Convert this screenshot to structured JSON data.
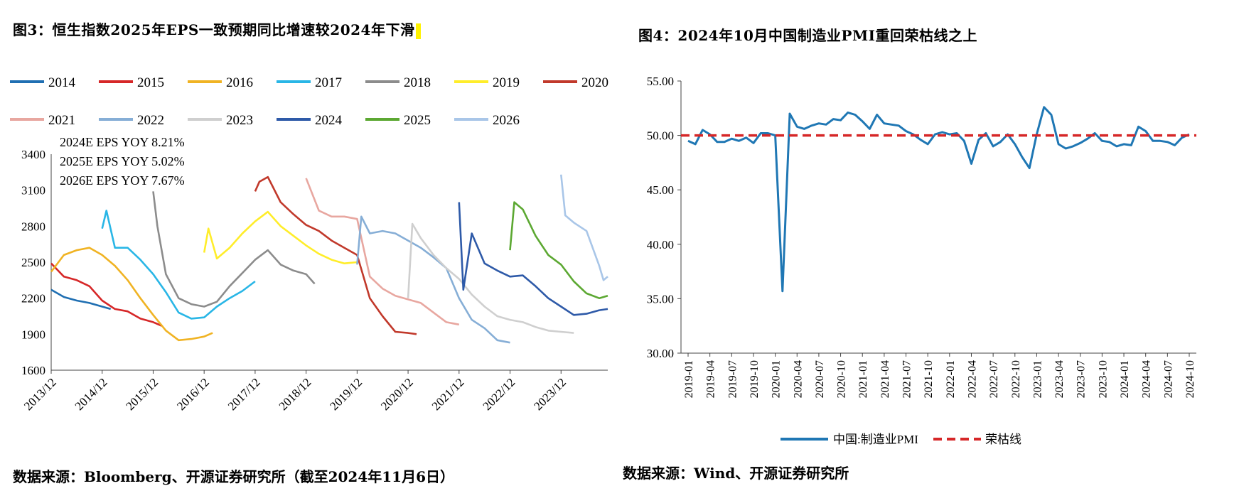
{
  "titles": {
    "left": "图3：恒生指数2025年EPS一致预期同比增速较2024年下滑",
    "right": "图4：2024年10月中国制造业PMI重回荣枯线之上"
  },
  "sources": {
    "left": "数据来源：Bloomberg、开源证券研究所（截至2024年11月6日）",
    "right": "数据来源：Wind、开源证券研究所"
  },
  "chart_data": [
    {
      "type": "line",
      "ylim": [
        1600,
        3400
      ],
      "yticks": [
        1600,
        1900,
        2200,
        2500,
        2800,
        3100,
        3400
      ],
      "xticks": [
        "2013/12",
        "2014/12",
        "2015/12",
        "2016/12",
        "2017/12",
        "2018/12",
        "2019/12",
        "2020/12",
        "2021/12",
        "2022/12",
        "2023/12"
      ],
      "annotations": [
        "2024E EPS YOY 8.21%",
        "2025E EPS YOY 5.02%",
        "2026E EPS YOY 7.67%"
      ],
      "legend": {
        "placement": "top",
        "columns": 7
      },
      "series": [
        {
          "name": "2014",
          "color": "#1f6fb2",
          "points": [
            [
              "2013/12",
              2270
            ],
            [
              "2014/03",
              2210
            ],
            [
              "2014/06",
              2180
            ],
            [
              "2014/09",
              2160
            ],
            [
              "2014/12",
              2130
            ],
            [
              "2015/02",
              2110
            ]
          ]
        },
        {
          "name": "2015",
          "color": "#d62728",
          "points": [
            [
              "2013/12",
              2490
            ],
            [
              "2014/03",
              2380
            ],
            [
              "2014/06",
              2350
            ],
            [
              "2014/09",
              2300
            ],
            [
              "2014/12",
              2180
            ],
            [
              "2015/03",
              2110
            ],
            [
              "2015/06",
              2090
            ],
            [
              "2015/09",
              2030
            ],
            [
              "2015/12",
              2000
            ],
            [
              "2016/02",
              1970
            ]
          ]
        },
        {
          "name": "2016",
          "color": "#f0b323",
          "points": [
            [
              "2013/12",
              2420
            ],
            [
              "2014/03",
              2560
            ],
            [
              "2014/06",
              2600
            ],
            [
              "2014/09",
              2620
            ],
            [
              "2014/12",
              2560
            ],
            [
              "2015/03",
              2470
            ],
            [
              "2015/06",
              2350
            ],
            [
              "2015/09",
              2200
            ],
            [
              "2015/12",
              2060
            ],
            [
              "2016/03",
              1930
            ],
            [
              "2016/06",
              1850
            ],
            [
              "2016/09",
              1860
            ],
            [
              "2016/12",
              1880
            ],
            [
              "2017/02",
              1910
            ]
          ]
        },
        {
          "name": "2017",
          "color": "#29b6e6",
          "points": [
            [
              "2014/12",
              2780
            ],
            [
              "2015/01",
              2930
            ],
            [
              "2015/03",
              2620
            ],
            [
              "2015/06",
              2620
            ],
            [
              "2015/09",
              2520
            ],
            [
              "2015/12",
              2400
            ],
            [
              "2016/03",
              2250
            ],
            [
              "2016/06",
              2080
            ],
            [
              "2016/09",
              2030
            ],
            [
              "2016/12",
              2040
            ],
            [
              "2017/03",
              2130
            ],
            [
              "2017/06",
              2200
            ],
            [
              "2017/09",
              2260
            ],
            [
              "2017/12",
              2340
            ]
          ]
        },
        {
          "name": "2018",
          "color": "#8c8c8c",
          "points": [
            [
              "2015/12",
              3090
            ],
            [
              "2016/01",
              2800
            ],
            [
              "2016/03",
              2400
            ],
            [
              "2016/06",
              2200
            ],
            [
              "2016/09",
              2150
            ],
            [
              "2016/12",
              2130
            ],
            [
              "2017/03",
              2170
            ],
            [
              "2017/06",
              2300
            ],
            [
              "2017/09",
              2410
            ],
            [
              "2017/12",
              2520
            ],
            [
              "2018/03",
              2600
            ],
            [
              "2018/06",
              2480
            ],
            [
              "2018/09",
              2430
            ],
            [
              "2018/12",
              2400
            ],
            [
              "2019/02",
              2320
            ]
          ]
        },
        {
          "name": "2019",
          "color": "#ffed2a",
          "points": [
            [
              "2016/12",
              2580
            ],
            [
              "2017/01",
              2780
            ],
            [
              "2017/03",
              2530
            ],
            [
              "2017/06",
              2620
            ],
            [
              "2017/09",
              2740
            ],
            [
              "2017/12",
              2840
            ],
            [
              "2018/03",
              2920
            ],
            [
              "2018/06",
              2800
            ],
            [
              "2018/09",
              2720
            ],
            [
              "2018/12",
              2640
            ],
            [
              "2019/03",
              2570
            ],
            [
              "2019/06",
              2520
            ],
            [
              "2019/09",
              2490
            ],
            [
              "2019/12",
              2500
            ]
          ]
        },
        {
          "name": "2020",
          "color": "#c1392b",
          "points": [
            [
              "2017/12",
              3090
            ],
            [
              "2018/01",
              3170
            ],
            [
              "2018/03",
              3210
            ],
            [
              "2018/06",
              3000
            ],
            [
              "2018/09",
              2900
            ],
            [
              "2018/12",
              2810
            ],
            [
              "2019/03",
              2760
            ],
            [
              "2019/06",
              2680
            ],
            [
              "2019/09",
              2620
            ],
            [
              "2019/12",
              2560
            ],
            [
              "2020/03",
              2200
            ],
            [
              "2020/06",
              2050
            ],
            [
              "2020/09",
              1920
            ],
            [
              "2020/12",
              1910
            ],
            [
              "2021/02",
              1900
            ]
          ]
        },
        {
          "name": "2021",
          "color": "#e8a7a0",
          "points": [
            [
              "2018/12",
              3200
            ],
            [
              "2019/01",
              3110
            ],
            [
              "2019/03",
              2930
            ],
            [
              "2019/06",
              2880
            ],
            [
              "2019/09",
              2880
            ],
            [
              "2019/12",
              2860
            ],
            [
              "2020/03",
              2380
            ],
            [
              "2020/06",
              2280
            ],
            [
              "2020/09",
              2220
            ],
            [
              "2020/12",
              2190
            ],
            [
              "2021/03",
              2160
            ],
            [
              "2021/06",
              2080
            ],
            [
              "2021/09",
              2000
            ],
            [
              "2021/12",
              1980
            ]
          ]
        },
        {
          "name": "2022",
          "color": "#86aed6",
          "points": [
            [
              "2019/12",
              2480
            ],
            [
              "2020/01",
              2880
            ],
            [
              "2020/03",
              2740
            ],
            [
              "2020/06",
              2760
            ],
            [
              "2020/09",
              2740
            ],
            [
              "2020/12",
              2680
            ],
            [
              "2021/03",
              2620
            ],
            [
              "2021/06",
              2540
            ],
            [
              "2021/09",
              2450
            ],
            [
              "2021/12",
              2200
            ],
            [
              "2022/03",
              2020
            ],
            [
              "2022/06",
              1950
            ],
            [
              "2022/09",
              1850
            ],
            [
              "2022/12",
              1830
            ]
          ]
        },
        {
          "name": "2023",
          "color": "#cfcfcf",
          "points": [
            [
              "2020/12",
              2200
            ],
            [
              "2021/01",
              2820
            ],
            [
              "2021/03",
              2700
            ],
            [
              "2021/06",
              2560
            ],
            [
              "2021/09",
              2450
            ],
            [
              "2021/12",
              2360
            ],
            [
              "2022/03",
              2230
            ],
            [
              "2022/06",
              2130
            ],
            [
              "2022/09",
              2050
            ],
            [
              "2022/12",
              2020
            ],
            [
              "2023/03",
              2000
            ],
            [
              "2023/06",
              1960
            ],
            [
              "2023/09",
              1930
            ],
            [
              "2023/12",
              1920
            ],
            [
              "2024/03",
              1910
            ]
          ]
        },
        {
          "name": "2024",
          "color": "#2e5aa8",
          "points": [
            [
              "2021/12",
              3000
            ],
            [
              "2022/01",
              2270
            ],
            [
              "2022/03",
              2740
            ],
            [
              "2022/06",
              2490
            ],
            [
              "2022/09",
              2430
            ],
            [
              "2022/12",
              2380
            ],
            [
              "2023/03",
              2390
            ],
            [
              "2023/06",
              2300
            ],
            [
              "2023/09",
              2200
            ],
            [
              "2023/12",
              2130
            ],
            [
              "2024/03",
              2060
            ],
            [
              "2024/06",
              2070
            ],
            [
              "2024/09",
              2100
            ],
            [
              "2024/11",
              2110
            ]
          ]
        },
        {
          "name": "2025",
          "color": "#5ca832",
          "points": [
            [
              "2022/12",
              2600
            ],
            [
              "2023/01",
              3000
            ],
            [
              "2023/03",
              2940
            ],
            [
              "2023/06",
              2720
            ],
            [
              "2023/09",
              2560
            ],
            [
              "2023/12",
              2480
            ],
            [
              "2024/03",
              2340
            ],
            [
              "2024/06",
              2240
            ],
            [
              "2024/09",
              2200
            ],
            [
              "2024/11",
              2220
            ]
          ]
        },
        {
          "name": "2026",
          "color": "#a9c6e8",
          "points": [
            [
              "2023/12",
              3230
            ],
            [
              "2024/01",
              2890
            ],
            [
              "2024/03",
              2830
            ],
            [
              "2024/06",
              2760
            ],
            [
              "2024/09",
              2470
            ],
            [
              "2024/10",
              2350
            ],
            [
              "2024/11",
              2380
            ]
          ]
        }
      ]
    },
    {
      "type": "line",
      "ylim": [
        30,
        55
      ],
      "yticks": [
        "30.00",
        "35.00",
        "40.00",
        "45.00",
        "50.00",
        "55.00"
      ],
      "xticks": [
        "2019-01",
        "2019-04",
        "2019-07",
        "2019-10",
        "2020-01",
        "2020-04",
        "2020-07",
        "2020-10",
        "2021-01",
        "2021-04",
        "2021-07",
        "2021-10",
        "2022-01",
        "2022-04",
        "2022-07",
        "2022-10",
        "2023-01",
        "2023-04",
        "2023-07",
        "2023-10",
        "2024-01",
        "2024-04",
        "2024-07",
        "2024-10"
      ],
      "legend": {
        "placement": "bottom"
      },
      "series": [
        {
          "name": "中国:制造业PMI",
          "color": "#1f77b4",
          "style": "solid",
          "x": [
            "2019-01",
            "2019-02",
            "2019-03",
            "2019-04",
            "2019-05",
            "2019-06",
            "2019-07",
            "2019-08",
            "2019-09",
            "2019-10",
            "2019-11",
            "2019-12",
            "2020-01",
            "2020-02",
            "2020-03",
            "2020-04",
            "2020-05",
            "2020-06",
            "2020-07",
            "2020-08",
            "2020-09",
            "2020-10",
            "2020-11",
            "2020-12",
            "2021-01",
            "2021-02",
            "2021-03",
            "2021-04",
            "2021-05",
            "2021-06",
            "2021-07",
            "2021-08",
            "2021-09",
            "2021-10",
            "2021-11",
            "2021-12",
            "2022-01",
            "2022-02",
            "2022-03",
            "2022-04",
            "2022-05",
            "2022-06",
            "2022-07",
            "2022-08",
            "2022-09",
            "2022-10",
            "2022-11",
            "2022-12",
            "2023-01",
            "2023-02",
            "2023-03",
            "2023-04",
            "2023-05",
            "2023-06",
            "2023-07",
            "2023-08",
            "2023-09",
            "2023-10",
            "2023-11",
            "2023-12",
            "2024-01",
            "2024-02",
            "2024-03",
            "2024-04",
            "2024-05",
            "2024-06",
            "2024-07",
            "2024-08",
            "2024-09",
            "2024-10"
          ],
          "values": [
            49.5,
            49.2,
            50.5,
            50.1,
            49.4,
            49.4,
            49.7,
            49.5,
            49.8,
            49.3,
            50.2,
            50.2,
            50.0,
            35.7,
            52.0,
            50.8,
            50.6,
            50.9,
            51.1,
            51.0,
            51.5,
            51.4,
            52.1,
            51.9,
            51.3,
            50.6,
            51.9,
            51.1,
            51.0,
            50.9,
            50.4,
            50.1,
            49.6,
            49.2,
            50.1,
            50.3,
            50.1,
            50.2,
            49.5,
            47.4,
            49.6,
            50.2,
            49.0,
            49.4,
            50.1,
            49.2,
            48.0,
            47.0,
            50.1,
            52.6,
            51.9,
            49.2,
            48.8,
            49.0,
            49.3,
            49.7,
            50.2,
            49.5,
            49.4,
            49.0,
            49.2,
            49.1,
            50.8,
            50.4,
            49.5,
            49.5,
            49.4,
            49.1,
            49.8,
            50.1
          ]
        },
        {
          "name": "荣枯线",
          "color": "#d62728",
          "style": "dashed",
          "value": 50
        }
      ]
    }
  ]
}
